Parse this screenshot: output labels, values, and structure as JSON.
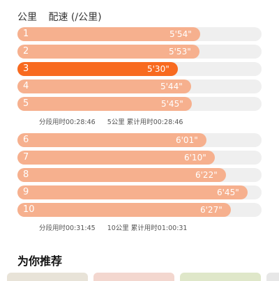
{
  "header": {
    "km_label": "公里",
    "pace_label": "配速 (/公里)"
  },
  "splits": [
    {
      "km": "1",
      "pace": "5'54\"",
      "seconds": 354,
      "best": false
    },
    {
      "km": "2",
      "pace": "5'53\"",
      "seconds": 353,
      "best": false
    },
    {
      "km": "3",
      "pace": "5'30\"",
      "seconds": 330,
      "best": true
    },
    {
      "km": "4",
      "pace": "5'44\"",
      "seconds": 344,
      "best": false
    },
    {
      "km": "5",
      "pace": "5'45\"",
      "seconds": 345,
      "best": false
    },
    {
      "km": "6",
      "pace": "6'01\"",
      "seconds": 361,
      "best": false
    },
    {
      "km": "7",
      "pace": "6'10\"",
      "seconds": 370,
      "best": false
    },
    {
      "km": "8",
      "pace": "6'22\"",
      "seconds": 382,
      "best": false
    },
    {
      "km": "9",
      "pace": "6'45\"",
      "seconds": 405,
      "best": false
    },
    {
      "km": "10",
      "pace": "6'27\"",
      "seconds": 387,
      "best": false
    }
  ],
  "summaries": [
    {
      "segment": "分段用时00:28:46",
      "cumulative": "5公里 累计用时00:28:46"
    },
    {
      "segment": "分段用时00:31:45",
      "cumulative": "10公里 累计用时01:00:31"
    }
  ],
  "recommend": {
    "title": "为你推荐"
  },
  "colors": {
    "bar": "#f6b08e",
    "best": "#f86a1f",
    "track": "#efefef"
  }
}
